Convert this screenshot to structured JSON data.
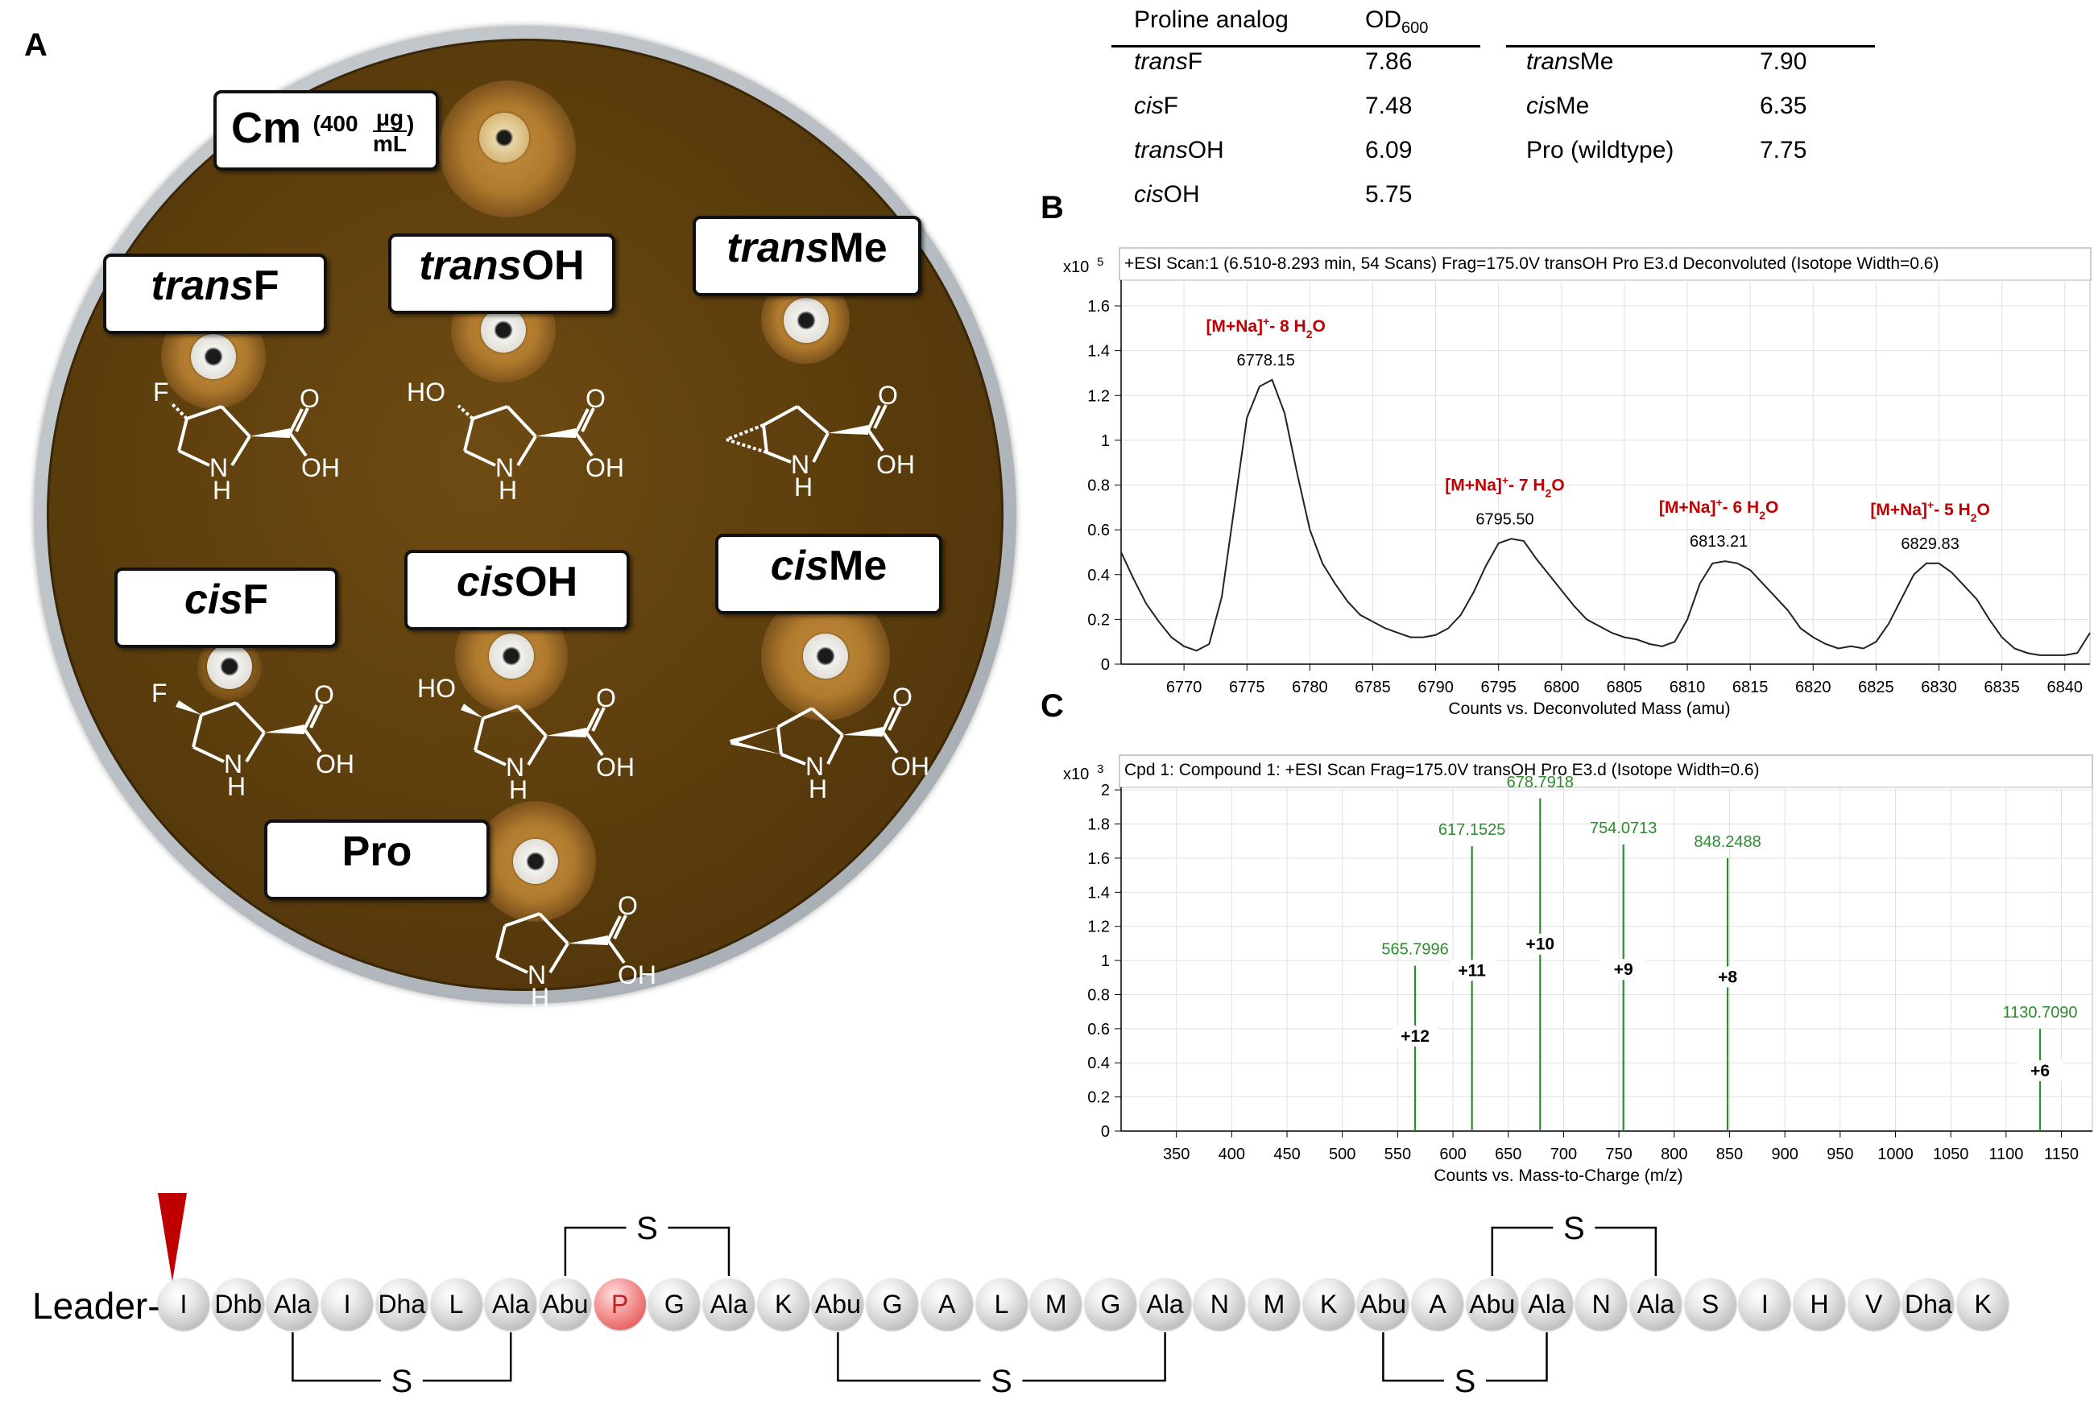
{
  "figure": {
    "panel_a_letter": "A",
    "panel_b_letter": "B",
    "panel_c_letter": "C"
  },
  "plate": {
    "cm_label": "Cm",
    "cm_conc_value": "400",
    "cm_conc_num": "μg",
    "cm_conc_den": "mL",
    "cm_open": "(",
    "cm_close": ")",
    "labels": {
      "transF": {
        "italic": "trans",
        "normal": "F"
      },
      "transOH": {
        "italic": "trans",
        "normal": "OH"
      },
      "transMe": {
        "italic": "trans",
        "normal": "Me"
      },
      "cisF": {
        "italic": "cis",
        "normal": "F"
      },
      "cisOH": {
        "italic": "cis",
        "normal": "OH"
      },
      "cisMe": {
        "italic": "cis",
        "normal": "Me"
      },
      "Pro": {
        "italic": "",
        "normal": "Pro"
      }
    },
    "atoms": {
      "F": "F",
      "HO": "HO",
      "O": "O",
      "OH": "OH",
      "N": "N",
      "H": "H"
    },
    "colors": {
      "agar": "#5a3c0c",
      "halo": "#c48a3a"
    }
  },
  "od_table": {
    "headers": [
      "Proline analog",
      "OD",
      "600"
    ],
    "left_rows": [
      {
        "analog_italic": "trans",
        "analog": "F",
        "od": "7.86"
      },
      {
        "analog_italic": "cis",
        "analog": "F",
        "od": "7.48"
      },
      {
        "analog_italic": "trans",
        "analog": "OH",
        "od": "6.09"
      },
      {
        "analog_italic": "cis",
        "analog": "OH",
        "od": "5.75"
      }
    ],
    "right_rows": [
      {
        "analog_italic": "trans",
        "analog": "Me",
        "od": "7.90"
      },
      {
        "analog_italic": "cis",
        "analog": "Me",
        "od": "6.35"
      },
      {
        "analog_italic": "",
        "analog": "Pro (wildtype)",
        "od": "7.75"
      }
    ]
  },
  "chart_data": [
    {
      "type": "line",
      "header": "+ESI Scan:1 (6.510-8.293 min, 54 Scans) Frag=175.0V transOH Pro E3.d  Deconvoluted (Isotope Width=0.6)",
      "y_multiplier": "x10",
      "y_multiplier_exp": "5",
      "xlabel": "Counts vs. Deconvoluted Mass (amu)",
      "xlim": [
        6765,
        6842
      ],
      "ylim": [
        0,
        1.6
      ],
      "xticks": [
        6770,
        6775,
        6780,
        6785,
        6790,
        6795,
        6800,
        6805,
        6810,
        6815,
        6820,
        6825,
        6830,
        6835,
        6840
      ],
      "yticks": [
        "0",
        "0.2",
        "0.4",
        "0.6",
        "0.8",
        "1",
        "1.2",
        "1.4",
        "1.6"
      ],
      "grid": true,
      "x": [
        6765,
        6766,
        6767,
        6768,
        6769,
        6770,
        6771,
        6772,
        6773,
        6774,
        6775,
        6776,
        6777,
        6778,
        6779,
        6780,
        6781,
        6782,
        6783,
        6784,
        6785,
        6786,
        6787,
        6788,
        6789,
        6790,
        6791,
        6792,
        6793,
        6794,
        6795,
        6796,
        6797,
        6798,
        6799,
        6800,
        6801,
        6802,
        6803,
        6804,
        6805,
        6806,
        6807,
        6808,
        6809,
        6810,
        6811,
        6812,
        6813,
        6814,
        6815,
        6816,
        6817,
        6818,
        6819,
        6820,
        6821,
        6822,
        6823,
        6824,
        6825,
        6826,
        6827,
        6828,
        6829,
        6830,
        6831,
        6832,
        6833,
        6834,
        6835,
        6836,
        6837,
        6838,
        6839,
        6840,
        6841,
        6842
      ],
      "y": [
        0.5,
        0.38,
        0.27,
        0.19,
        0.12,
        0.08,
        0.06,
        0.09,
        0.3,
        0.7,
        1.1,
        1.24,
        1.27,
        1.12,
        0.85,
        0.6,
        0.45,
        0.36,
        0.28,
        0.22,
        0.19,
        0.16,
        0.14,
        0.12,
        0.12,
        0.13,
        0.16,
        0.22,
        0.32,
        0.44,
        0.54,
        0.56,
        0.55,
        0.47,
        0.4,
        0.33,
        0.26,
        0.2,
        0.17,
        0.14,
        0.12,
        0.11,
        0.09,
        0.08,
        0.1,
        0.2,
        0.36,
        0.45,
        0.46,
        0.45,
        0.42,
        0.36,
        0.3,
        0.24,
        0.16,
        0.12,
        0.09,
        0.07,
        0.08,
        0.07,
        0.1,
        0.18,
        0.29,
        0.4,
        0.45,
        0.45,
        0.41,
        0.35,
        0.29,
        0.2,
        0.12,
        0.07,
        0.05,
        0.04,
        0.04,
        0.04,
        0.05,
        0.14
      ],
      "peaks": [
        {
          "x": 6776.5,
          "y": 1.27,
          "mass": "6778.15",
          "ion": "[M+Na]",
          "ion_sup": "+",
          "loss": "- 8 H",
          "sub": "2",
          "tail": "O"
        },
        {
          "x": 6795.5,
          "y": 0.56,
          "mass": "6795.50",
          "ion": "[M+Na]",
          "ion_sup": "+",
          "loss": "- 7 H",
          "sub": "2",
          "tail": "O"
        },
        {
          "x": 6812.5,
          "y": 0.46,
          "mass": "6813.21",
          "ion": "[M+Na]",
          "ion_sup": "+",
          "loss": "- 6 H",
          "sub": "2",
          "tail": "O"
        },
        {
          "x": 6829.3,
          "y": 0.45,
          "mass": "6829.83",
          "ion": "[M+Na]",
          "ion_sup": "+",
          "loss": "- 5 H",
          "sub": "2",
          "tail": "O"
        }
      ],
      "annotation_color": "#c00000"
    },
    {
      "type": "bar",
      "header": "Cpd 1: Compound 1: +ESI Scan Frag=175.0V transOH Pro E3.d  (Isotope Width=0.6)",
      "y_multiplier": "x10",
      "y_multiplier_exp": "3",
      "xlabel": "Counts vs. Mass-to-Charge (m/z)",
      "xlim": [
        300,
        1178
      ],
      "ylim": [
        0,
        2.1
      ],
      "xticks": [
        350,
        400,
        450,
        500,
        550,
        600,
        650,
        700,
        750,
        800,
        850,
        900,
        950,
        1000,
        1050,
        1100,
        1150
      ],
      "yticks": [
        "0",
        "0.2",
        "0.4",
        "0.6",
        "0.8",
        "1",
        "1.2",
        "1.4",
        "1.6",
        "1.8",
        "2"
      ],
      "grid": true,
      "peaks": [
        {
          "mz": 565.7996,
          "y": 0.97,
          "label": "565.7996",
          "charge": "+12"
        },
        {
          "mz": 617.1525,
          "y": 1.67,
          "label": "617.1525",
          "charge": "+11"
        },
        {
          "mz": 678.7918,
          "y": 1.95,
          "label": "678.7918",
          "charge": "+10"
        },
        {
          "mz": 754.0713,
          "y": 1.68,
          "label": "754.0713",
          "charge": "+9"
        },
        {
          "mz": 848.2488,
          "y": 1.6,
          "label": "848.2488",
          "charge": "+8"
        },
        {
          "mz": 1130.709,
          "y": 0.6,
          "label": "1130.7090",
          "charge": "+6"
        }
      ],
      "peak_color": "#2e8b2e"
    }
  ],
  "peptide": {
    "leader": "Leader-",
    "residues": [
      "I",
      "Dhb",
      "Ala",
      "I",
      "Dha",
      "L",
      "Ala",
      "Abu",
      "P",
      "G",
      "Ala",
      "K",
      "Abu",
      "G",
      "A",
      "L",
      "M",
      "G",
      "Ala",
      "N",
      "M",
      "K",
      "Abu",
      "A",
      "Abu",
      "Ala",
      "N",
      "Ala",
      "S",
      "I",
      "H",
      "V",
      "Dha",
      "K"
    ],
    "highlight_index": 8,
    "bridges": [
      {
        "from": 7,
        "to": 10,
        "side": "top",
        "label": "S"
      },
      {
        "from": 2,
        "to": 6,
        "side": "bottom",
        "label": "S"
      },
      {
        "from": 12,
        "to": 18,
        "side": "bottom",
        "label": "S"
      },
      {
        "from": 24,
        "to": 27,
        "side": "top",
        "label": "S"
      },
      {
        "from": 22,
        "to": 25,
        "side": "bottom",
        "label": "S"
      }
    ],
    "arrow_color": "#c00000",
    "highlight_color": "#e86565"
  }
}
